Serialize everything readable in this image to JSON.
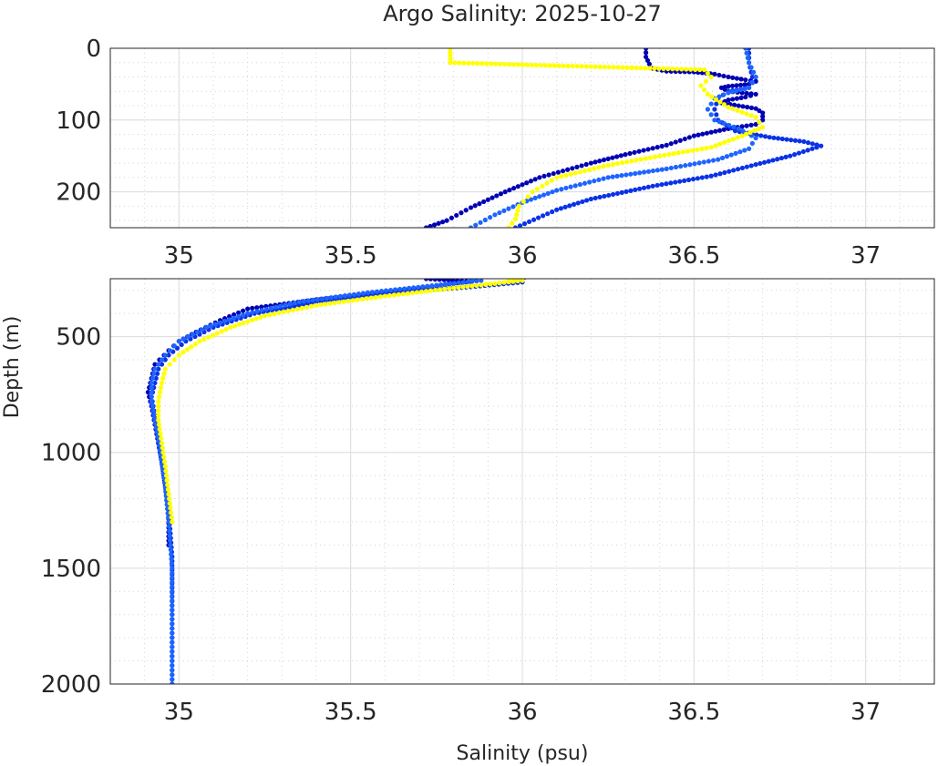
{
  "chart_data": {
    "type": "scatter",
    "title": "Argo Salinity: 2025-10-27",
    "xlabel": "Salinity (psu)",
    "ylabel": "Depth (m)",
    "grid": true,
    "y_reversed": true,
    "panels": [
      {
        "name": "upper",
        "xlim": [
          34.8,
          37.2
        ],
        "ylim": [
          0,
          250
        ],
        "xticks": [
          "35",
          "35.5",
          "36",
          "36.5",
          "37"
        ],
        "yticks": [
          "0",
          "100",
          "200"
        ]
      },
      {
        "name": "lower",
        "xlim": [
          34.8,
          37.2
        ],
        "ylim": [
          250,
          2000
        ],
        "xticks": [
          "35",
          "35.5",
          "36",
          "36.5",
          "37"
        ],
        "yticks": [
          "500",
          "1000",
          "1500",
          "2000"
        ]
      }
    ],
    "series": [
      {
        "color": "#0000b4",
        "points": [
          [
            36.36,
            0
          ],
          [
            36.36,
            12
          ],
          [
            36.37,
            22
          ],
          [
            36.38,
            28
          ],
          [
            36.42,
            32
          ],
          [
            36.5,
            33
          ],
          [
            36.56,
            36
          ],
          [
            36.6,
            40
          ],
          [
            36.65,
            44
          ],
          [
            36.68,
            46
          ],
          [
            36.66,
            50
          ],
          [
            36.6,
            53
          ],
          [
            36.58,
            55
          ],
          [
            36.6,
            60
          ],
          [
            36.68,
            64
          ],
          [
            36.65,
            68
          ],
          [
            36.6,
            72
          ],
          [
            36.58,
            76
          ],
          [
            36.63,
            80
          ],
          [
            36.68,
            84
          ],
          [
            36.7,
            90
          ],
          [
            36.7,
            100
          ],
          [
            36.68,
            106
          ],
          [
            36.6,
            112
          ],
          [
            36.5,
            122
          ],
          [
            36.42,
            135
          ],
          [
            36.3,
            148
          ],
          [
            36.2,
            160
          ],
          [
            36.05,
            180
          ],
          [
            35.95,
            200
          ],
          [
            35.85,
            222
          ],
          [
            35.78,
            240
          ],
          [
            35.72,
            250
          ],
          [
            35.85,
            262
          ],
          [
            35.75,
            280
          ],
          [
            35.6,
            310
          ],
          [
            35.4,
            340
          ],
          [
            35.2,
            380
          ],
          [
            35.12,
            430
          ],
          [
            35.05,
            480
          ],
          [
            35.0,
            520
          ],
          [
            34.97,
            560
          ],
          [
            34.93,
            620
          ],
          [
            34.92,
            680
          ],
          [
            34.91,
            740
          ],
          [
            34.92,
            800
          ],
          [
            34.93,
            880
          ],
          [
            34.94,
            960
          ],
          [
            34.95,
            1040
          ],
          [
            34.96,
            1140
          ],
          [
            34.97,
            1250
          ],
          [
            34.97,
            1400
          ]
        ]
      },
      {
        "color": "#0a32e6",
        "points": [
          [
            36.66,
            0
          ],
          [
            36.66,
            20
          ],
          [
            36.67,
            40
          ],
          [
            36.66,
            55
          ],
          [
            36.6,
            60
          ],
          [
            36.57,
            70
          ],
          [
            36.56,
            85
          ],
          [
            36.57,
            100
          ],
          [
            36.62,
            115
          ],
          [
            36.72,
            124
          ],
          [
            36.82,
            130
          ],
          [
            36.87,
            136
          ],
          [
            36.78,
            150
          ],
          [
            36.68,
            162
          ],
          [
            36.55,
            178
          ],
          [
            36.38,
            192
          ],
          [
            36.2,
            210
          ],
          [
            36.1,
            225
          ],
          [
            35.98,
            250
          ],
          [
            36.0,
            265
          ],
          [
            35.85,
            285
          ],
          [
            35.6,
            315
          ],
          [
            35.4,
            350
          ],
          [
            35.22,
            400
          ],
          [
            35.1,
            460
          ],
          [
            35.02,
            520
          ],
          [
            34.97,
            580
          ],
          [
            34.94,
            640
          ],
          [
            34.93,
            700
          ],
          [
            34.92,
            760
          ],
          [
            34.93,
            840
          ],
          [
            34.94,
            920
          ],
          [
            34.95,
            1020
          ],
          [
            34.96,
            1130
          ],
          [
            34.97,
            1250
          ],
          [
            34.98,
            1450
          ],
          [
            34.98,
            1700
          ],
          [
            34.98,
            2000
          ]
        ]
      },
      {
        "color": "#1e64ff",
        "points": [
          [
            36.65,
            0
          ],
          [
            36.66,
            20
          ],
          [
            36.68,
            40
          ],
          [
            36.66,
            55
          ],
          [
            36.6,
            62
          ],
          [
            36.56,
            70
          ],
          [
            36.54,
            85
          ],
          [
            36.56,
            100
          ],
          [
            36.63,
            112
          ],
          [
            36.68,
            125
          ],
          [
            36.66,
            140
          ],
          [
            36.57,
            155
          ],
          [
            36.42,
            168
          ],
          [
            36.25,
            180
          ],
          [
            36.1,
            198
          ],
          [
            36.0,
            215
          ],
          [
            35.92,
            232
          ],
          [
            35.85,
            250
          ],
          [
            35.88,
            258
          ],
          [
            35.75,
            278
          ],
          [
            35.55,
            310
          ],
          [
            35.35,
            350
          ],
          [
            35.2,
            400
          ],
          [
            35.08,
            460
          ],
          [
            35.0,
            520
          ],
          [
            34.96,
            580
          ],
          [
            34.93,
            640
          ],
          [
            34.92,
            700
          ],
          [
            34.92,
            780
          ],
          [
            34.93,
            860
          ],
          [
            34.94,
            950
          ],
          [
            34.95,
            1050
          ],
          [
            34.96,
            1150
          ],
          [
            34.97,
            1300
          ],
          [
            34.98,
            1500
          ],
          [
            34.98,
            1800
          ],
          [
            34.98,
            2000
          ]
        ]
      },
      {
        "color": "#ffff00",
        "points": [
          [
            35.79,
            0
          ],
          [
            35.79,
            10
          ],
          [
            35.79,
            20
          ],
          [
            36.53,
            30
          ],
          [
            36.55,
            40
          ],
          [
            36.52,
            52
          ],
          [
            36.54,
            64
          ],
          [
            36.6,
            82
          ],
          [
            36.68,
            96
          ],
          [
            36.7,
            110
          ],
          [
            36.64,
            122
          ],
          [
            36.55,
            138
          ],
          [
            36.4,
            150
          ],
          [
            36.25,
            163
          ],
          [
            36.1,
            180
          ],
          [
            36.03,
            200
          ],
          [
            35.99,
            220
          ],
          [
            35.98,
            238
          ],
          [
            35.96,
            250
          ],
          [
            36.0,
            258
          ],
          [
            35.8,
            290
          ],
          [
            35.6,
            325
          ],
          [
            35.4,
            365
          ],
          [
            35.25,
            410
          ],
          [
            35.15,
            460
          ],
          [
            35.06,
            520
          ],
          [
            35.0,
            580
          ],
          [
            34.96,
            640
          ],
          [
            34.95,
            700
          ],
          [
            34.94,
            780
          ],
          [
            34.94,
            860
          ],
          [
            34.95,
            960
          ],
          [
            34.96,
            1060
          ],
          [
            34.97,
            1180
          ],
          [
            34.98,
            1300
          ]
        ]
      }
    ]
  }
}
